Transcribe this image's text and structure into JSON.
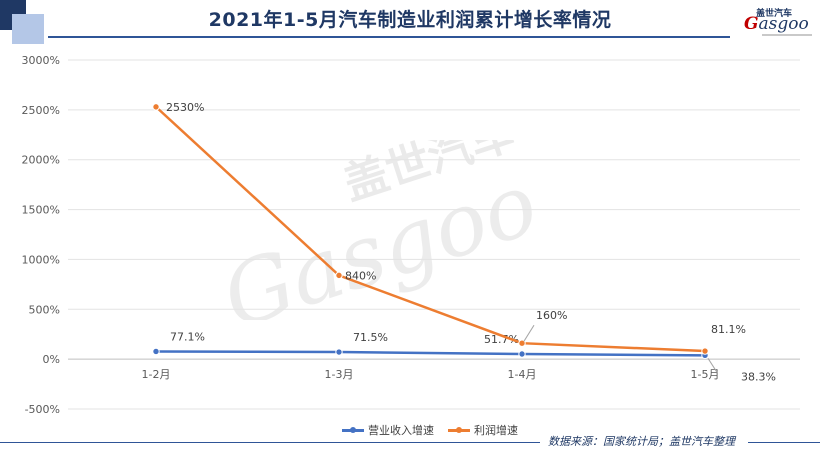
{
  "header": {
    "title": "2021年1-5月汽车制造业利润累计增长率情况",
    "logo_cn": "盖世汽车",
    "logo_g": "G",
    "logo_rest": "asgoo"
  },
  "watermark": {
    "cn": "盖世汽车",
    "en": "Gasgoo"
  },
  "source": "数据来源：国家统计局；盖世汽车整理",
  "chart_data": {
    "type": "line",
    "title": "2021年1-5月汽车制造业利润累计增长率情况",
    "categories": [
      "1-2月",
      "1-3月",
      "1-4月",
      "1-5月"
    ],
    "ylim": [
      -500,
      3000
    ],
    "yticks": [
      -500,
      0,
      500,
      1000,
      1500,
      2000,
      2500,
      3000
    ],
    "ytick_labels": [
      "-500%",
      "0%",
      "500%",
      "1000%",
      "1500%",
      "2000%",
      "2500%",
      "3000%"
    ],
    "grid": true,
    "legend": "bottom",
    "series": [
      {
        "name": "营业收入增速",
        "color": "#4472c4",
        "values": [
          77.1,
          71.5,
          51.7,
          38.3
        ],
        "labels": [
          "77.1%",
          "71.5%",
          "51.7%",
          "38.3%"
        ]
      },
      {
        "name": "利润增速",
        "color": "#ed7d31",
        "values": [
          2530,
          840,
          160,
          81.1
        ],
        "labels": [
          "2530%",
          "840%",
          "160%",
          "81.1%"
        ]
      }
    ]
  }
}
